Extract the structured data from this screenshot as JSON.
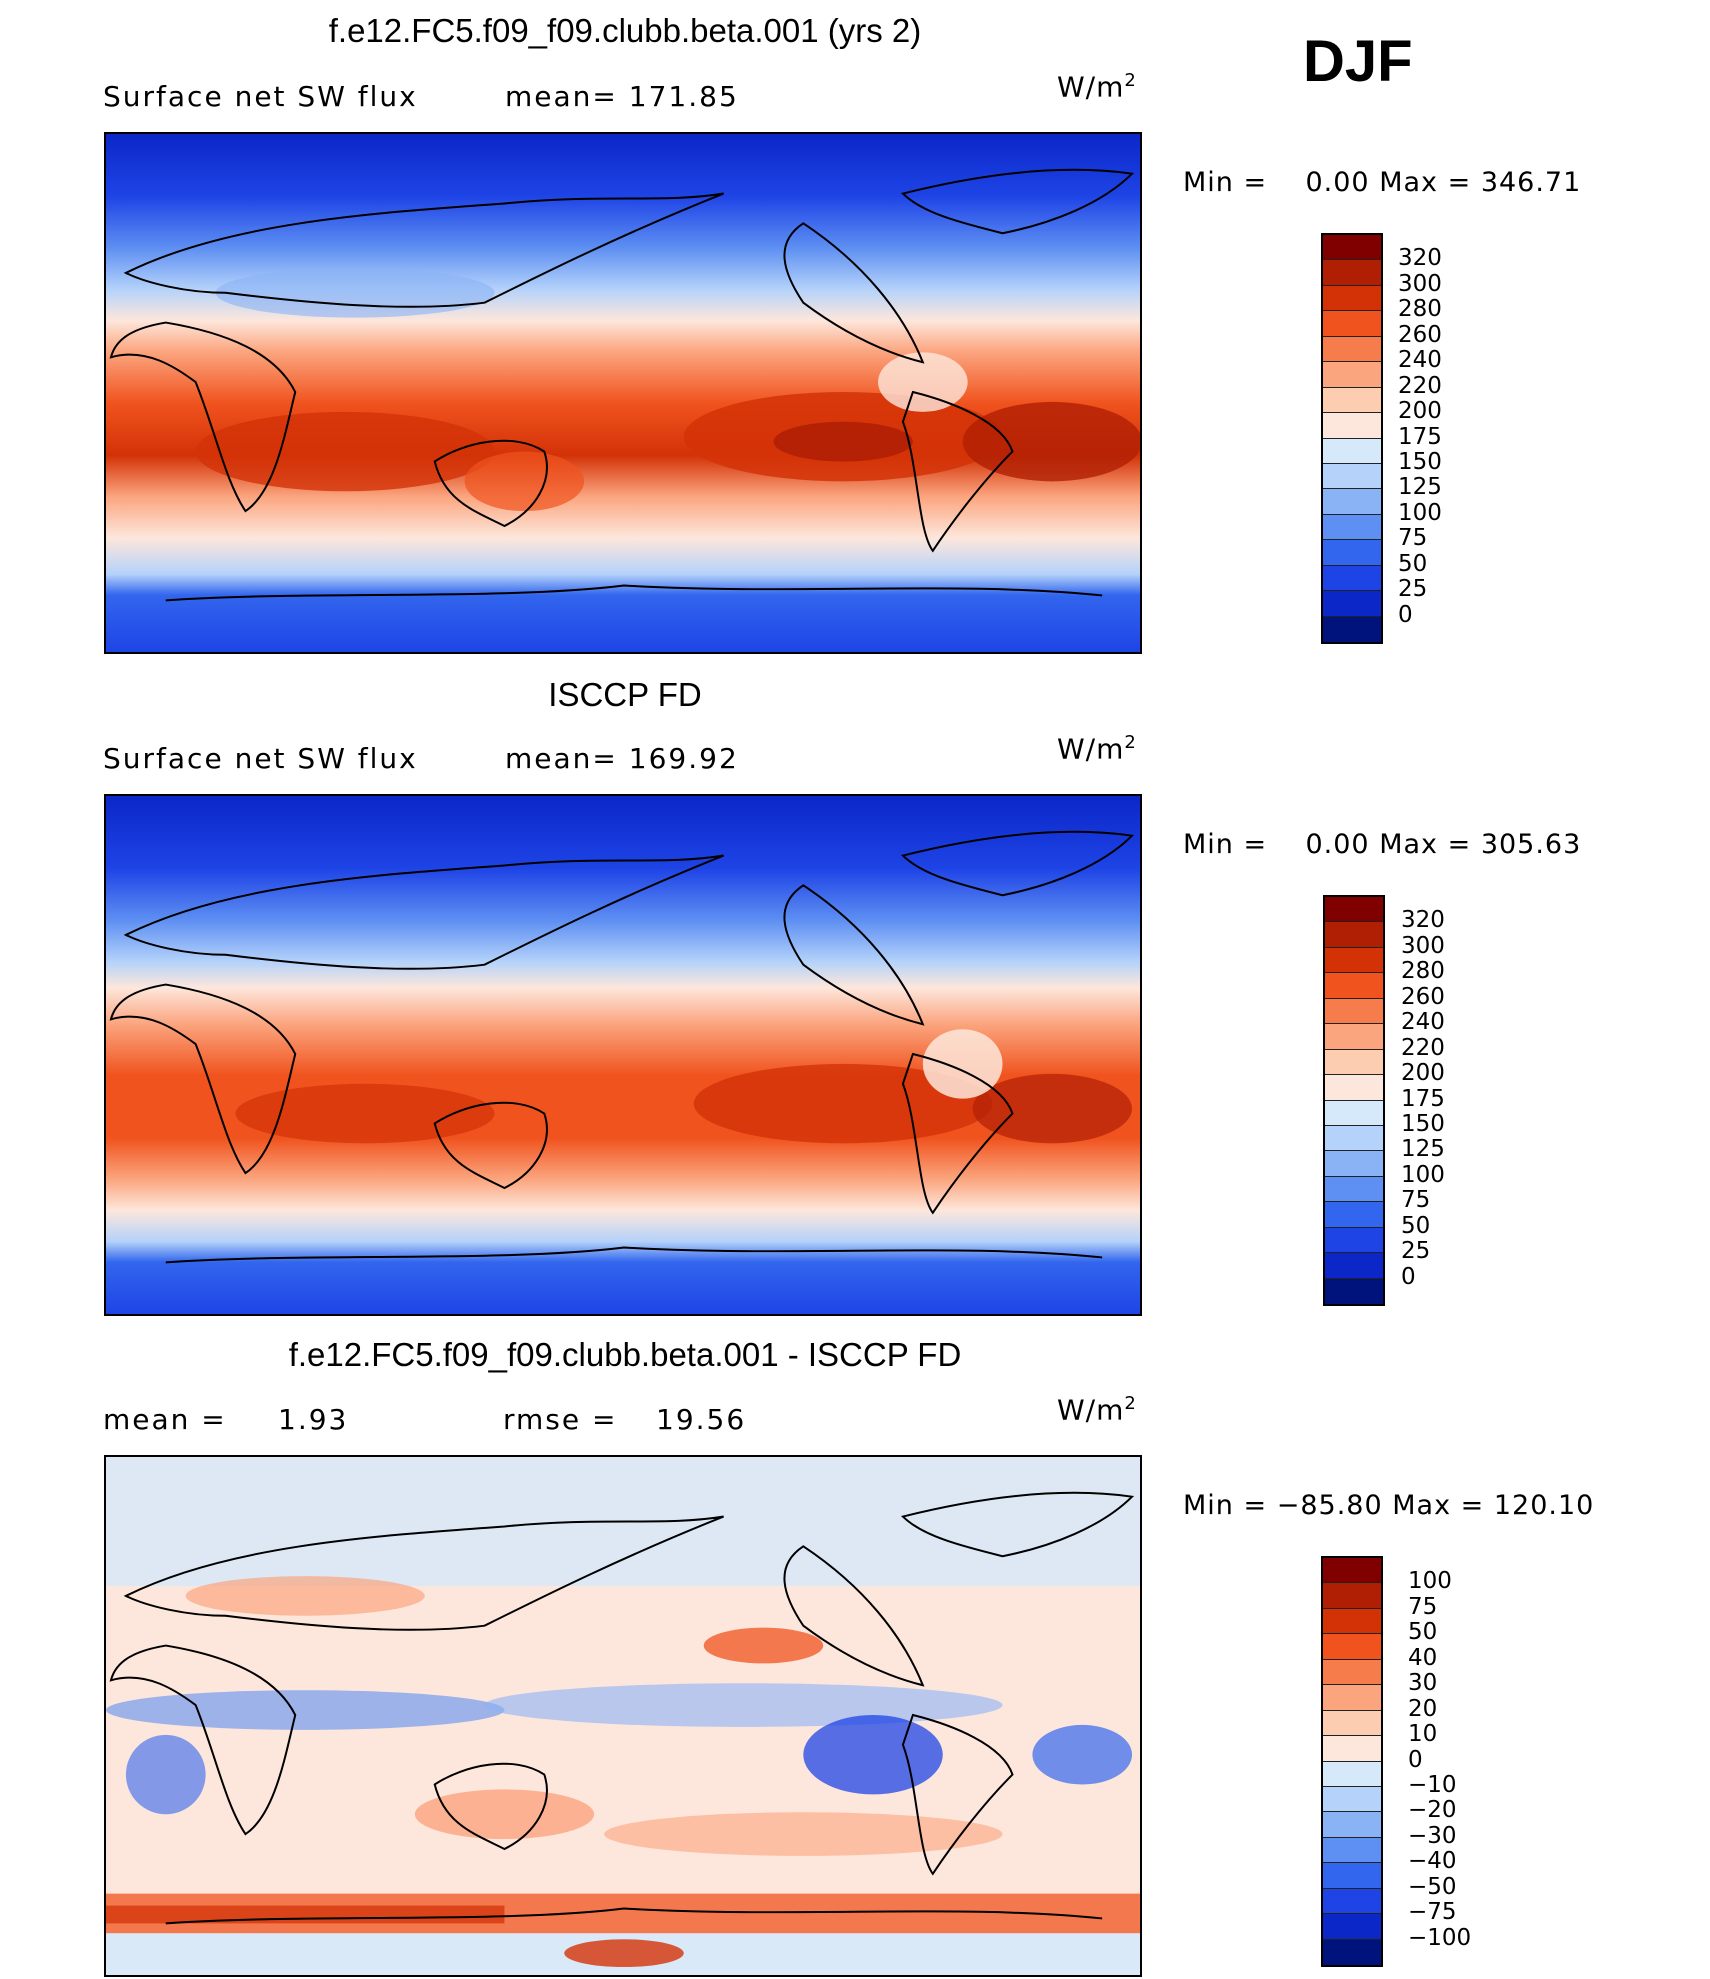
{
  "season": "DJF",
  "units_text": "W/m",
  "units_exp": "2",
  "panels": [
    {
      "title": "f.e12.FC5.f09_f09.clubb.beta.001 (yrs 2)",
      "left_label": "Surface net SW flux",
      "stat_label": "mean=",
      "stat_value": "171.85",
      "stat2_label": "",
      "stat2_value": "",
      "min_label": "Min =",
      "min_value": "0.00",
      "max_label": "Max =",
      "max_value": "346.71",
      "colorbar_labels": [
        "320",
        "300",
        "280",
        "260",
        "240",
        "220",
        "200",
        "175",
        "150",
        "125",
        "100",
        "75",
        "50",
        "25",
        "0"
      ],
      "colorbar_colors": [
        "#800000",
        "#b01f04",
        "#d33207",
        "#f0531e",
        "#f67c4c",
        "#fba57f",
        "#fdcdb2",
        "#fde7dc",
        "#d6e9fb",
        "#b4d2fa",
        "#8ab3f5",
        "#5e8ff2",
        "#3266ee",
        "#1e44e6",
        "#0b27c8",
        "#00127c"
      ]
    },
    {
      "title": "ISCCP FD",
      "left_label": "Surface net SW flux",
      "stat_label": "mean=",
      "stat_value": "169.92",
      "stat2_label": "",
      "stat2_value": "",
      "min_label": "Min =",
      "min_value": "0.00",
      "max_label": "Max =",
      "max_value": "305.63",
      "colorbar_labels": [
        "320",
        "300",
        "280",
        "260",
        "240",
        "220",
        "200",
        "175",
        "150",
        "125",
        "100",
        "75",
        "50",
        "25",
        "0"
      ],
      "colorbar_colors": [
        "#800000",
        "#b01f04",
        "#d33207",
        "#f0531e",
        "#f67c4c",
        "#fba57f",
        "#fdcdb2",
        "#fde7dc",
        "#d6e9fb",
        "#b4d2fa",
        "#8ab3f5",
        "#5e8ff2",
        "#3266ee",
        "#1e44e6",
        "#0b27c8",
        "#00127c"
      ]
    },
    {
      "title": "f.e12.FC5.f09_f09.clubb.beta.001 - ISCCP FD",
      "left_label": "mean =",
      "stat_label": "",
      "stat_value": "1.93",
      "stat2_label": "rmse =",
      "stat2_value": "19.56",
      "min_label": "Min =",
      "min_value": "−85.80",
      "max_label": "Max =",
      "max_value": "120.10",
      "colorbar_labels": [
        "100",
        "75",
        "50",
        "40",
        "30",
        "20",
        "10",
        "0",
        "−10",
        "−20",
        "−30",
        "−40",
        "−50",
        "−75",
        "−100"
      ],
      "colorbar_colors": [
        "#800000",
        "#b01f04",
        "#d33207",
        "#f0531e",
        "#f67c4c",
        "#fba57f",
        "#fdcdb2",
        "#fde7dc",
        "#d6e9fb",
        "#b4d2fa",
        "#8ab3f5",
        "#5e8ff2",
        "#3266ee",
        "#1e44e6",
        "#0b27c8",
        "#00127c"
      ]
    }
  ]
}
